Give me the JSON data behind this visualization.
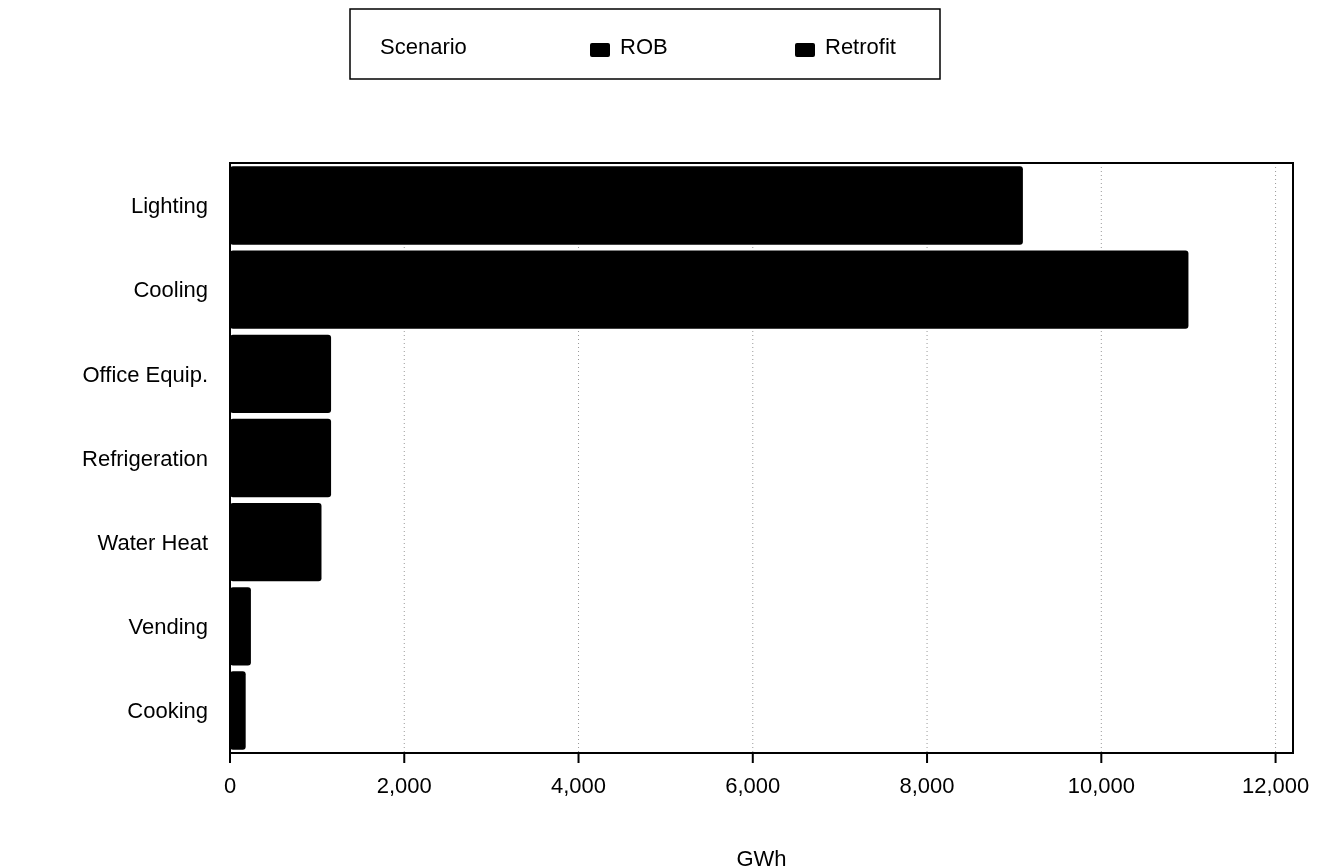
{
  "chart_data": {
    "type": "bar",
    "orientation": "horizontal",
    "xlabel": "GWh",
    "legend_title": "Scenario",
    "legend": "top",
    "categories": [
      "Lighting",
      "Cooling",
      "Office Equip.",
      "Refrigeration",
      "Water Heat",
      "Vending",
      "Cooking"
    ],
    "series": [
      {
        "name": "ROB",
        "color": "#000000",
        "values": [
          9100,
          11000,
          1160,
          1160,
          1050,
          240,
          180
        ]
      },
      {
        "name": "Retrofit",
        "color": "#000000",
        "values": [
          null,
          null,
          null,
          null,
          null,
          null,
          null
        ]
      }
    ],
    "xlim": [
      0,
      12200
    ],
    "xticks": [
      {
        "value": 0,
        "label": "0"
      },
      {
        "value": 2000,
        "label": "2,000"
      },
      {
        "value": 4000,
        "label": "4,000"
      },
      {
        "value": 6000,
        "label": "6,000"
      },
      {
        "value": 8000,
        "label": "8,000"
      },
      {
        "value": 10000,
        "label": "10,000"
      },
      {
        "value": 12000,
        "label": "12,000"
      }
    ],
    "grid": "x"
  }
}
